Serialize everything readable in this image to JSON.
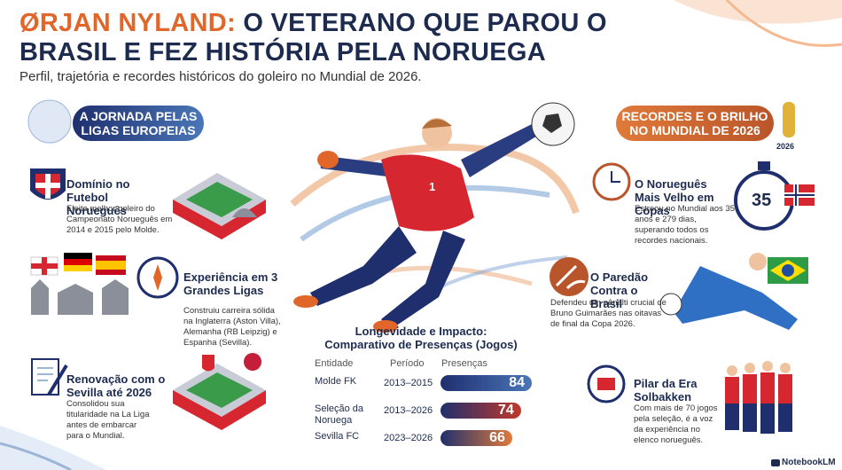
{
  "header": {
    "title_highlight": "ØRJAN NYLAND:",
    "title_rest": "O VETERANO QUE PAROU O BRASIL E FEZ HISTÓRIA PELA NORUEGA",
    "subtitle": "Perfil, trajetória e recordes históricos do goleiro no Mundial de 2026."
  },
  "left": {
    "banner": "A JORNADA PELAS LIGAS EUROPEIAS",
    "items": [
      {
        "title": "Domínio no Futebol Norueguês",
        "text": "Eleito melhor goleiro do Campeonato Norueguês em 2014 e 2015 pelo Molde."
      },
      {
        "title": "Experiência em 3 Grandes Ligas",
        "text": "Construiu carreira sólida na Inglaterra (Aston Villa), Alemanha (RB Leipzig) e Espanha (Sevilla)."
      },
      {
        "title": "Renovação com o Sevilla até 2026",
        "text": "Consolidou sua titularidade na La Liga antes de embarcar para o Mundial."
      }
    ]
  },
  "right": {
    "banner": "RECORDES E O BRILHO NO MUNDIAL DE 2026",
    "trophy_label": "2026",
    "items": [
      {
        "title": "O Norueguês Mais Velho em Copas",
        "text": "Estreou no Mundial aos 35 anos e 279 dias, superando todos os recordes nacionais.",
        "badge": "35"
      },
      {
        "title": "O Paredão Contra o Brasil",
        "text": "Defendeu um pênalti crucial de Bruno Guimarães nas oitavas de final da Copa 2026."
      },
      {
        "title": "Pilar da Era Solbakken",
        "text": "Com mais de 70 jogos pela seleção, é a voz da experiência no elenco norueguês."
      }
    ]
  },
  "player": {
    "number": "1"
  },
  "table": {
    "title": "Longevidade e Impacto: Comparativo de Presenças (Jogos)",
    "headers": [
      "Entidade",
      "Período",
      "Presenças"
    ],
    "rows": [
      [
        "Molde FK",
        "2013–2015",
        84
      ],
      [
        "Seleção da Noruega",
        "2013–2026",
        74
      ],
      [
        "Sevilla FC",
        "2023–2026",
        66
      ]
    ]
  },
  "footer": {
    "brand": "NotebookLM"
  }
}
